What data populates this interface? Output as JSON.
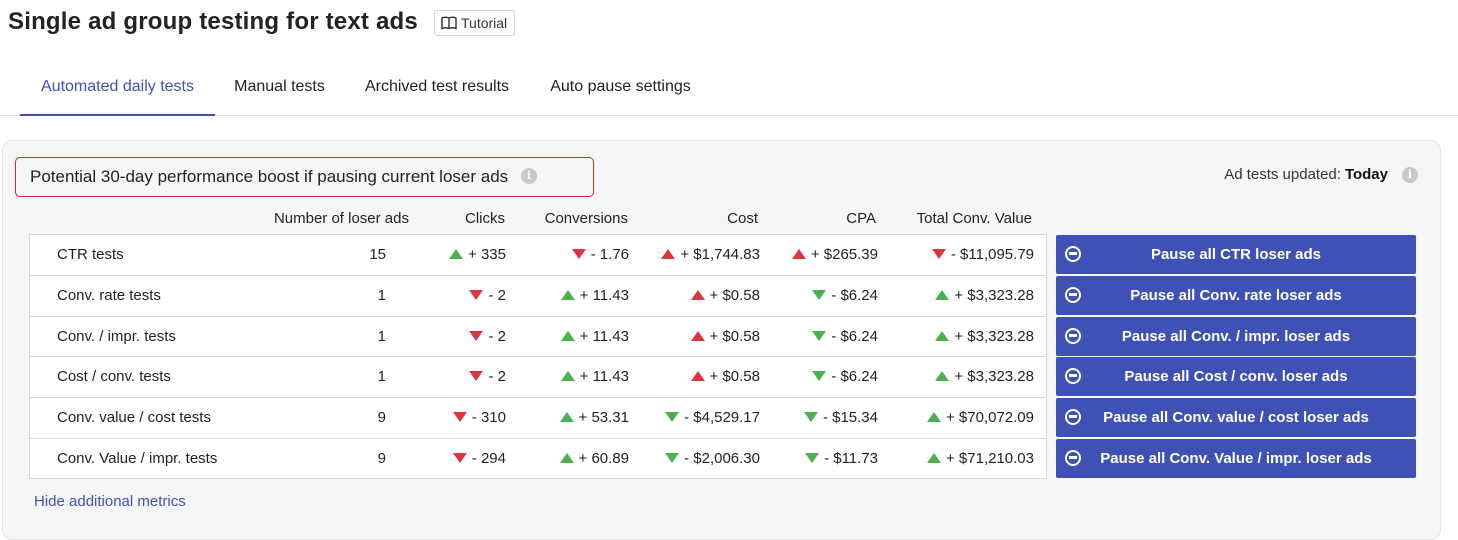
{
  "header": {
    "title": "Single ad group testing for text ads",
    "tutorial_label": "Tutorial",
    "tutorial_icon": "book-icon"
  },
  "tabs": [
    {
      "label": "Automated daily tests",
      "active": true
    },
    {
      "label": "Manual tests",
      "active": false
    },
    {
      "label": "Archived test results",
      "active": false
    },
    {
      "label": "Auto pause settings",
      "active": false
    }
  ],
  "panel": {
    "boost_title": "Potential 30-day performance boost if pausing current loser ads",
    "updated_label": "Ad tests updated:",
    "updated_value": "Today",
    "hide_metrics_label": "Hide additional metrics"
  },
  "table": {
    "columns": [
      "Number of loser ads",
      "Clicks",
      "Conversions",
      "Cost",
      "CPA",
      "Total Conv. Value"
    ],
    "rows": [
      {
        "name": "CTR tests",
        "losers": "15",
        "clicks": {
          "text": "+ 335",
          "dir": "up",
          "tone": "good"
        },
        "conversions": {
          "text": "- 1.76",
          "dir": "down",
          "tone": "bad"
        },
        "cost": {
          "text": "+ $1,744.83",
          "dir": "up",
          "tone": "bad"
        },
        "cpa": {
          "text": "+ $265.39",
          "dir": "up",
          "tone": "bad"
        },
        "conv_value": {
          "text": "- $11,095.79",
          "dir": "down",
          "tone": "bad"
        },
        "button": "Pause all CTR loser ads"
      },
      {
        "name": "Conv. rate tests",
        "losers": "1",
        "clicks": {
          "text": "- 2",
          "dir": "down",
          "tone": "bad"
        },
        "conversions": {
          "text": "+ 11.43",
          "dir": "up",
          "tone": "good"
        },
        "cost": {
          "text": "+ $0.58",
          "dir": "up",
          "tone": "bad"
        },
        "cpa": {
          "text": "- $6.24",
          "dir": "down",
          "tone": "good"
        },
        "conv_value": {
          "text": "+ $3,323.28",
          "dir": "up",
          "tone": "good"
        },
        "button": "Pause all Conv. rate loser ads"
      },
      {
        "name": "Conv. / impr. tests",
        "losers": "1",
        "clicks": {
          "text": "- 2",
          "dir": "down",
          "tone": "bad"
        },
        "conversions": {
          "text": "+ 11.43",
          "dir": "up",
          "tone": "good"
        },
        "cost": {
          "text": "+ $0.58",
          "dir": "up",
          "tone": "bad"
        },
        "cpa": {
          "text": "- $6.24",
          "dir": "down",
          "tone": "good"
        },
        "conv_value": {
          "text": "+ $3,323.28",
          "dir": "up",
          "tone": "good"
        },
        "button": "Pause all Conv. / impr. loser ads"
      },
      {
        "name": "Cost / conv. tests",
        "losers": "1",
        "clicks": {
          "text": "- 2",
          "dir": "down",
          "tone": "bad"
        },
        "conversions": {
          "text": "+ 11.43",
          "dir": "up",
          "tone": "good"
        },
        "cost": {
          "text": "+ $0.58",
          "dir": "up",
          "tone": "bad"
        },
        "cpa": {
          "text": "- $6.24",
          "dir": "down",
          "tone": "good"
        },
        "conv_value": {
          "text": "+ $3,323.28",
          "dir": "up",
          "tone": "good"
        },
        "button": "Pause all Cost / conv. loser ads"
      },
      {
        "name": "Conv. value / cost tests",
        "losers": "9",
        "clicks": {
          "text": "- 310",
          "dir": "down",
          "tone": "bad"
        },
        "conversions": {
          "text": "+ 53.31",
          "dir": "up",
          "tone": "good"
        },
        "cost": {
          "text": "- $4,529.17",
          "dir": "down",
          "tone": "good"
        },
        "cpa": {
          "text": "- $15.34",
          "dir": "down",
          "tone": "good"
        },
        "conv_value": {
          "text": "+ $70,072.09",
          "dir": "up",
          "tone": "good"
        },
        "button": "Pause all Conv. value / cost loser ads"
      },
      {
        "name": "Conv. Value / impr. tests",
        "losers": "9",
        "clicks": {
          "text": "- 294",
          "dir": "down",
          "tone": "bad"
        },
        "conversions": {
          "text": "+ 60.89",
          "dir": "up",
          "tone": "good"
        },
        "cost": {
          "text": "- $2,006.30",
          "dir": "down",
          "tone": "good"
        },
        "cpa": {
          "text": "- $11.73",
          "dir": "down",
          "tone": "good"
        },
        "conv_value": {
          "text": "+ $71,210.03",
          "dir": "up",
          "tone": "good"
        },
        "button": "Pause all Conv. Value / impr. loser ads"
      }
    ]
  },
  "colors": {
    "accent": "#3f51b5",
    "good": "#4caf50",
    "bad": "#d9363e",
    "highlight_border": "#d9262c"
  }
}
